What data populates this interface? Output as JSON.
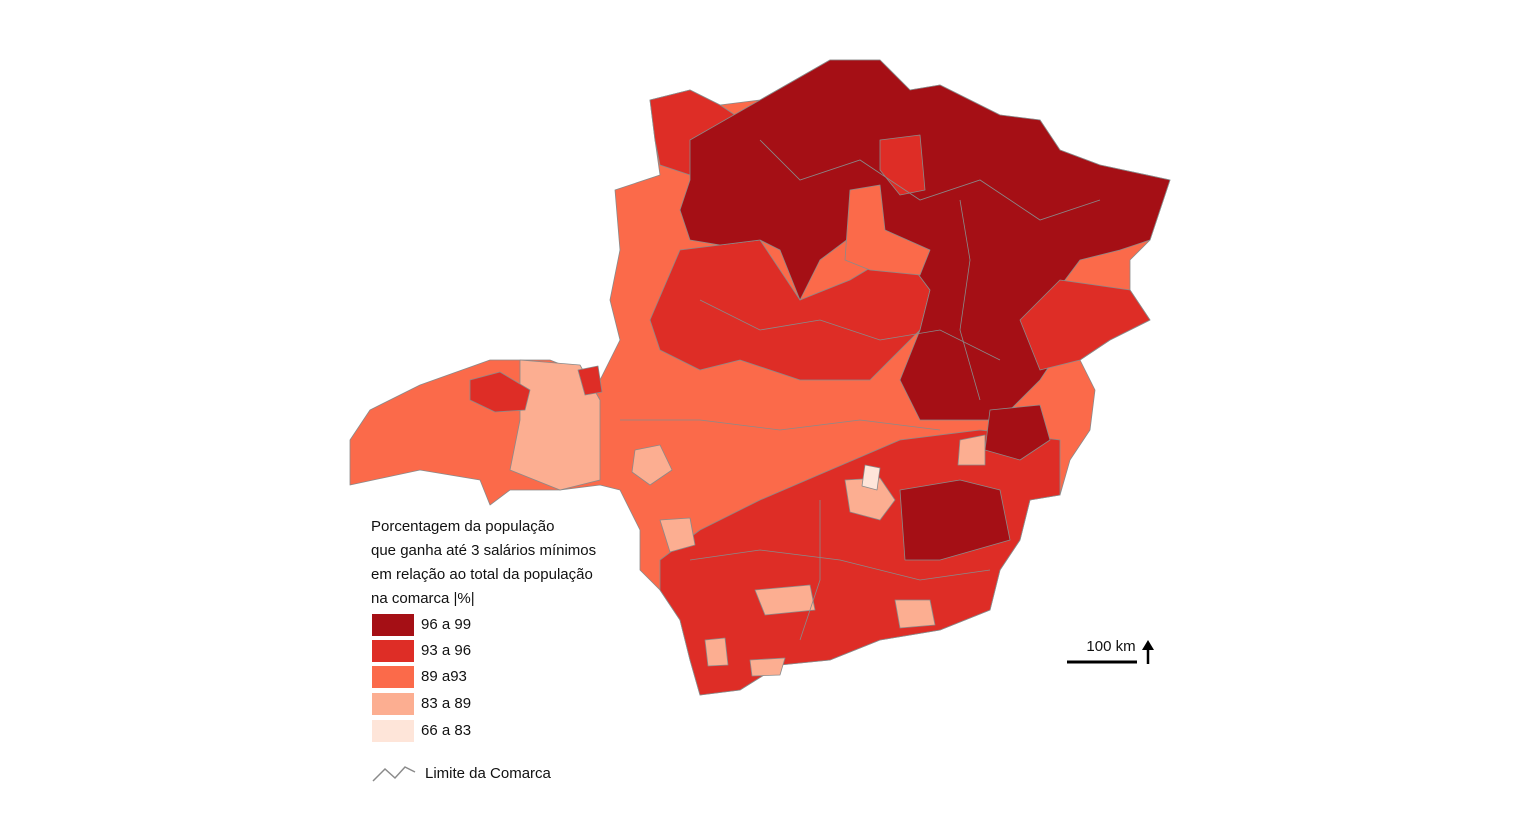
{
  "legend": {
    "title": [
      "Porcentagem da população",
      "que ganha até 3 salários mínimos",
      "em relação ao total da população",
      "na comarca |%|"
    ],
    "items": [
      {
        "label": "96 a 99",
        "color": "#a50f15"
      },
      {
        "label": "93 a 96",
        "color": "#de2d26"
      },
      {
        "label": "89 a93",
        "color": "#fb6a4a"
      },
      {
        "label": "83 a 89",
        "color": "#fcae91"
      },
      {
        "label": "66 a 83",
        "color": "#fee5d9"
      }
    ],
    "boundary_label": "Limite da Comarca"
  },
  "scale_bar": {
    "label": "100 km"
  }
}
